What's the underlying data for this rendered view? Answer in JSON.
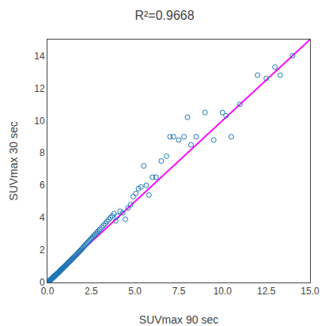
{
  "chart_data": {
    "type": "scatter",
    "title": "R²=0.9668",
    "x_label": "SUVmax 90 sec",
    "y_label": "SUVmax 30 sec",
    "xlim": [
      0,
      15.0
    ],
    "ylim": [
      0,
      15.0
    ],
    "xticks": [
      {
        "value": 0,
        "label": "0.0"
      },
      2.5,
      {
        "value": 5.0,
        "label": "5.0"
      },
      7.5,
      {
        "value": 10.0,
        "label": "10.0"
      },
      12.5,
      {
        "value": 15.0,
        "label": "15.0"
      }
    ],
    "yticks": [
      0,
      2,
      4,
      6,
      8,
      10,
      12,
      14
    ],
    "grid": false,
    "series": [
      {
        "type": "scatter",
        "marker": "circle-open",
        "color": "#1f77b4",
        "x": [
          0.05,
          0.06,
          0.07,
          0.08,
          0.09,
          0.1,
          0.11,
          0.12,
          0.13,
          0.14,
          0.15,
          0.16,
          0.17,
          0.18,
          0.19,
          0.2,
          0.21,
          0.22,
          0.23,
          0.24,
          0.25,
          0.26,
          0.27,
          0.28,
          0.29,
          0.3,
          0.31,
          0.32,
          0.33,
          0.34,
          0.35,
          0.36,
          0.37,
          0.38,
          0.39,
          0.4,
          0.42,
          0.44,
          0.46,
          0.48,
          0.5,
          0.52,
          0.54,
          0.56,
          0.58,
          0.6,
          0.62,
          0.64,
          0.66,
          0.68,
          0.7,
          0.72,
          0.74,
          0.76,
          0.78,
          0.8,
          0.83,
          0.86,
          0.89,
          0.92,
          0.95,
          0.98,
          1.01,
          1.04,
          1.07,
          1.1,
          1.13,
          1.17,
          1.21,
          1.25,
          1.29,
          1.33,
          1.37,
          1.41,
          1.46,
          1.51,
          1.56,
          1.61,
          1.66,
          1.71,
          1.76,
          1.81,
          1.86,
          1.91,
          1.96,
          2.01,
          2.06,
          2.11,
          2.16,
          2.22,
          2.28,
          2.34,
          2.4,
          2.46,
          2.52,
          2.58,
          2.65,
          2.72,
          2.79,
          2.86,
          2.93,
          3.0,
          3.1,
          3.2,
          3.3,
          3.4,
          3.5,
          3.6,
          3.7,
          3.8,
          3.9,
          4.0,
          4.15,
          4.3,
          4.45,
          4.6,
          4.75,
          4.9,
          5.05,
          5.2,
          5.35,
          5.5,
          5.65,
          5.8,
          6.0,
          6.2,
          6.5,
          6.8,
          7.0,
          7.2,
          7.5,
          7.8,
          8.0,
          8.2,
          8.5,
          9.0,
          9.5,
          10.0,
          10.2,
          10.5,
          11.0,
          12.0,
          12.5,
          13.0,
          13.3,
          14.0
        ],
        "values": [
          0.05,
          0.06,
          0.07,
          0.08,
          0.09,
          0.1,
          0.1,
          0.11,
          0.12,
          0.13,
          0.14,
          0.15,
          0.16,
          0.17,
          0.18,
          0.19,
          0.2,
          0.21,
          0.22,
          0.23,
          0.24,
          0.25,
          0.26,
          0.27,
          0.28,
          0.29,
          0.3,
          0.31,
          0.32,
          0.33,
          0.34,
          0.35,
          0.36,
          0.37,
          0.38,
          0.39,
          0.41,
          0.43,
          0.45,
          0.47,
          0.49,
          0.51,
          0.53,
          0.55,
          0.57,
          0.59,
          0.61,
          0.63,
          0.65,
          0.68,
          0.7,
          0.72,
          0.74,
          0.76,
          0.79,
          0.81,
          0.84,
          0.87,
          0.9,
          0.93,
          0.96,
          0.99,
          1.02,
          1.05,
          1.08,
          1.12,
          1.16,
          1.2,
          1.24,
          1.28,
          1.32,
          1.36,
          1.41,
          1.46,
          1.51,
          1.56,
          1.62,
          1.67,
          1.73,
          1.78,
          1.84,
          1.9,
          1.95,
          2.01,
          2.07,
          2.13,
          2.19,
          2.25,
          2.32,
          2.38,
          2.45,
          2.52,
          2.59,
          2.66,
          2.73,
          2.8,
          2.88,
          2.96,
          3.04,
          3.12,
          3.2,
          3.28,
          3.4,
          3.52,
          3.64,
          3.76,
          3.88,
          4.0,
          4.12,
          4.25,
          3.8,
          4.1,
          4.4,
          4.3,
          3.9,
          4.6,
          4.8,
          5.3,
          5.5,
          5.8,
          5.9,
          7.2,
          6.0,
          5.4,
          6.5,
          6.5,
          7.5,
          7.8,
          9.0,
          9.0,
          8.8,
          9.0,
          10.2,
          8.5,
          9.0,
          10.5,
          8.8,
          10.5,
          10.3,
          9.0,
          11.0,
          12.8,
          12.6,
          13.3,
          12.8,
          14.0
        ]
      },
      {
        "type": "line",
        "line_style": "solid",
        "color": "#FF00FF",
        "x": [
          0,
          15.0
        ],
        "values": [
          0,
          15.0
        ]
      }
    ]
  }
}
